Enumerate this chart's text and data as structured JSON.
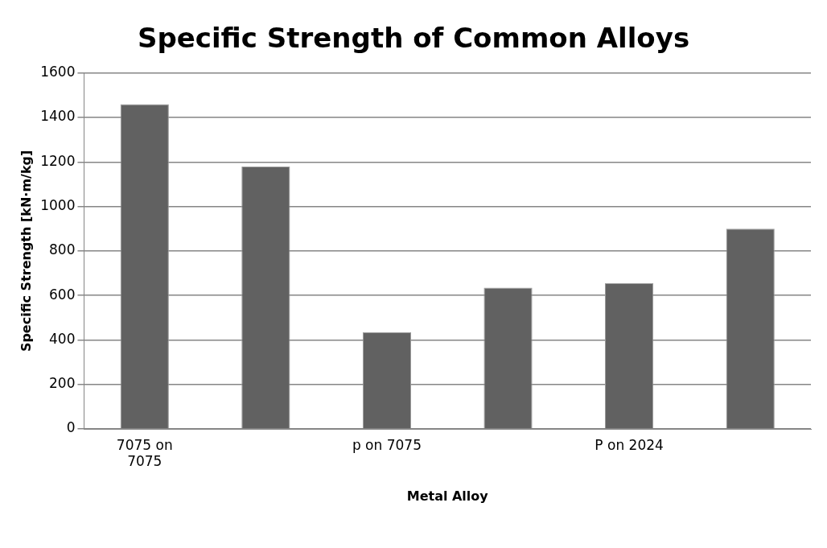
{
  "chart_data": {
    "type": "bar",
    "title": "Specific Strength of Common Alloys",
    "xlabel": "Metal Alloy",
    "ylabel": "Specific Strength [kN·m/kg]",
    "categories": [
      "7075 on 7075",
      null,
      "p on 7075",
      null,
      "P on 2024",
      null
    ],
    "values": [
      1460,
      1180,
      435,
      635,
      655,
      900
    ],
    "color": "#616161",
    "ylim": [
      0,
      1600
    ],
    "yticks": [
      0,
      200,
      400,
      600,
      800,
      1000,
      1200,
      1400,
      1600
    ],
    "grid": "y",
    "legend": false
  }
}
